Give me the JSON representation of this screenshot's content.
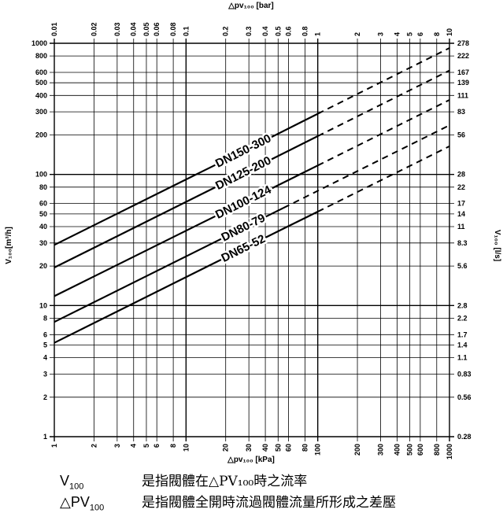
{
  "chart_data": {
    "type": "line",
    "x_bottom": {
      "label": "△pv₁₀₀ [kPa]",
      "scale": "log",
      "range": [
        1,
        1000
      ],
      "ticks": [
        1,
        2,
        3,
        4,
        5,
        6,
        8,
        10,
        20,
        30,
        40,
        50,
        60,
        80,
        100,
        200,
        300,
        400,
        500,
        600,
        800,
        1000
      ],
      "tick_labels": [
        "1",
        "2",
        "3",
        "4",
        "5",
        "6",
        "8",
        "10",
        "20",
        "30",
        "40",
        "50",
        "60",
        "80",
        "100",
        "200",
        "300",
        "400",
        "500",
        "600",
        "800",
        "1000"
      ]
    },
    "x_top": {
      "label": "△pv₁₀₀ [bar]",
      "scale": "log",
      "range": [
        0.01,
        10
      ],
      "ticks": [
        0.01,
        0.02,
        0.03,
        0.04,
        0.05,
        0.06,
        0.08,
        0.1,
        0.2,
        0.3,
        0.4,
        0.5,
        0.6,
        0.8,
        1,
        2,
        3,
        4,
        5,
        6,
        8,
        10
      ],
      "tick_labels": [
        "0.01",
        "0.02",
        "0.03",
        "0.04",
        "0.05",
        "0.06",
        "0.08",
        "0.1",
        "0.2",
        "0.3",
        "0.4",
        "0.5",
        "0.6",
        "0.8",
        "1",
        "2",
        "3",
        "4",
        "5",
        "6",
        "8",
        "10"
      ]
    },
    "y_left": {
      "label": "V₁₀₀[m³/h]",
      "scale": "log",
      "range": [
        1,
        1000
      ],
      "ticks": [
        1,
        2,
        3,
        4,
        5,
        6,
        8,
        10,
        20,
        30,
        40,
        50,
        60,
        80,
        100,
        200,
        300,
        400,
        500,
        600,
        800,
        1000
      ],
      "tick_labels": [
        "1",
        "2",
        "3",
        "4",
        "5",
        "6",
        "8",
        "10",
        "20",
        "30",
        "40",
        "50",
        "60",
        "80",
        "100",
        "200",
        "300",
        "400",
        "500",
        "600",
        "800",
        "1000"
      ]
    },
    "y_right": {
      "label": "V₁₀₀ [l/s]",
      "ticks_at_left_value": [
        1,
        2,
        3,
        4,
        5,
        6,
        8,
        10,
        20,
        30,
        40,
        50,
        60,
        80,
        100,
        200,
        300,
        400,
        500,
        600,
        800,
        1000
      ],
      "tick_labels": [
        "0.28",
        "0.56",
        "0.83",
        "1.1",
        "1.4",
        "1.7",
        "2.2",
        "2.8",
        "5.6",
        "8.3",
        "11",
        "14",
        "17",
        "22",
        "28",
        "56",
        "83",
        "111",
        "139",
        "167",
        "222",
        "278"
      ]
    },
    "grid": true,
    "series": [
      {
        "name": "DN150-300",
        "label_at": 28,
        "solid": [
          [
            1,
            29
          ],
          [
            11,
            96
          ],
          [
            32,
            163
          ],
          [
            100,
            290
          ]
        ],
        "dashed": [
          [
            100,
            290
          ],
          [
            1000,
            920
          ]
        ]
      },
      {
        "name": "DN125-200",
        "label_at": 28,
        "solid": [
          [
            1,
            19.5
          ],
          [
            45,
            131
          ],
          [
            100,
            196
          ]
        ],
        "dashed": [
          [
            100,
            196
          ],
          [
            1000,
            620
          ]
        ]
      },
      {
        "name": "DN100-124",
        "label_at": 28,
        "solid": [
          [
            1,
            11.8
          ],
          [
            12.5,
            41.6
          ],
          [
            40,
            74
          ],
          [
            100,
            117
          ]
        ],
        "dashed": [
          [
            100,
            117
          ],
          [
            1000,
            370
          ]
        ]
      },
      {
        "name": "DN80-79",
        "label_at": 28,
        "solid": [
          [
            1,
            7.5
          ],
          [
            55,
            55.6
          ]
        ],
        "dashed": [
          [
            55,
            55.6
          ],
          [
            1000,
            237
          ]
        ]
      },
      {
        "name": "DN65-52",
        "label_at": 28,
        "solid": [
          [
            1,
            5.2
          ],
          [
            14,
            19.5
          ],
          [
            60,
            40.3
          ],
          [
            100,
            52
          ]
        ],
        "dashed": [
          [
            100,
            52
          ],
          [
            1000,
            164
          ]
        ]
      }
    ]
  },
  "legend": {
    "rows": [
      {
        "symbol": "V",
        "symbol_sub": "100",
        "symbol_prefix": "",
        "text": "是指閥體在△PV₁₀₀時之流率"
      },
      {
        "symbol": "PV",
        "symbol_sub": "100",
        "symbol_prefix": "△",
        "text": "是指閥體全開時流過閥體流量所形成之差壓"
      }
    ]
  }
}
